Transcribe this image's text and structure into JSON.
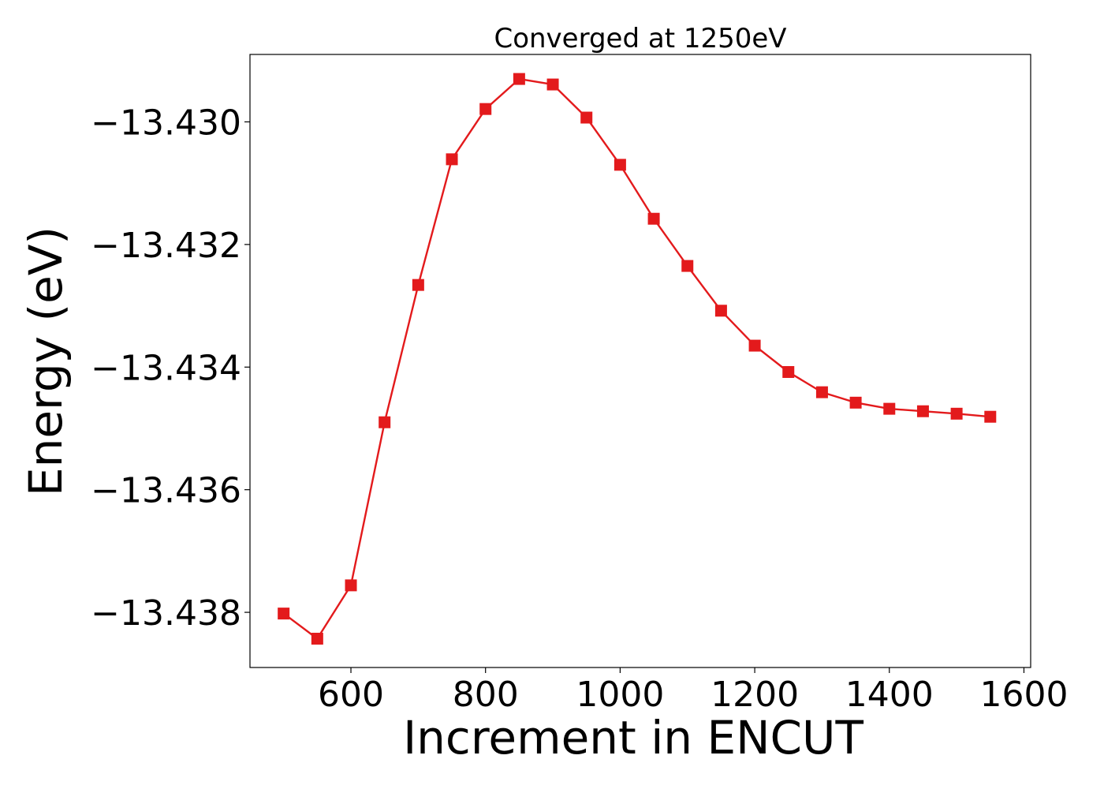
{
  "chart_data": {
    "type": "line",
    "title": "Converged at 1250eV",
    "xlabel": "Increment in ENCUT",
    "ylabel": "Energy (eV)",
    "xlim": [
      450,
      1610
    ],
    "ylim": [
      -13.4389,
      -13.4289
    ],
    "xticks": [
      600,
      800,
      1000,
      1200,
      1400,
      1600
    ],
    "xtick_labels": [
      "600",
      "800",
      "1000",
      "1200",
      "1400",
      "1600"
    ],
    "yticks": [
      -13.43,
      -13.432,
      -13.434,
      -13.436,
      -13.438
    ],
    "ytick_labels": [
      "−13.430",
      "−13.432",
      "−13.434",
      "−13.436",
      "−13.438"
    ],
    "grid": false,
    "marker": "square",
    "color": "#e31a1c",
    "series": [
      {
        "x": [
          500,
          550,
          600,
          650,
          700,
          750,
          800,
          850,
          900,
          950,
          1000,
          1050,
          1100,
          1150,
          1200,
          1250,
          1300,
          1350,
          1400,
          1450,
          1500,
          1550
        ],
        "y": [
          -13.43802,
          -13.43843,
          -13.43756,
          -13.4349,
          -13.43266,
          -13.43061,
          -13.42979,
          -13.4293,
          -13.42939,
          -13.42993,
          -13.4307,
          -13.43158,
          -13.43235,
          -13.43308,
          -13.43365,
          -13.43408,
          -13.43441,
          -13.43458,
          -13.43468,
          -13.43472,
          -13.43476,
          -13.43481
        ]
      }
    ]
  }
}
